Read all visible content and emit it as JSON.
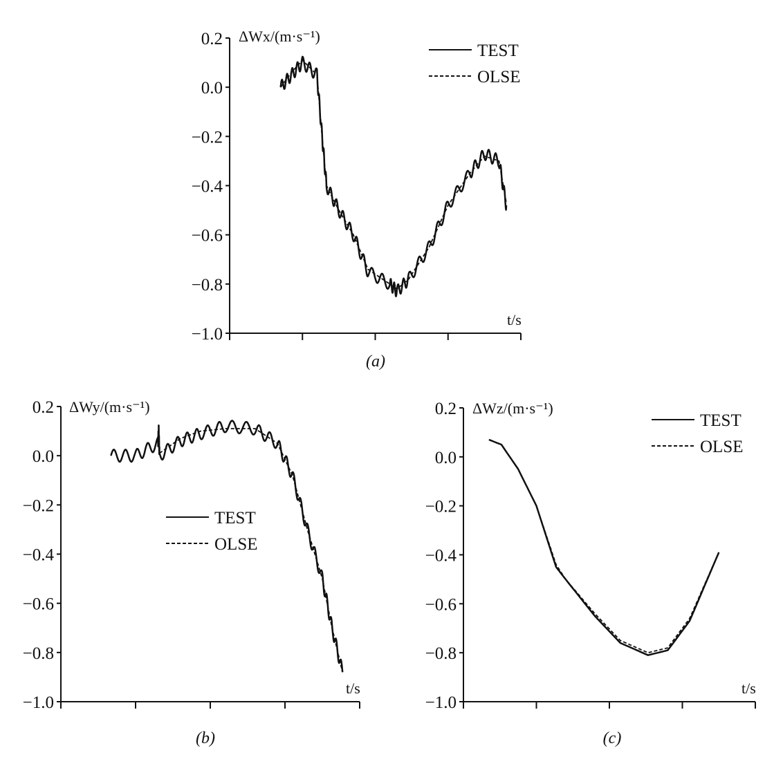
{
  "chart_data": [
    {
      "panel": "a",
      "type": "line",
      "caption": "(a)",
      "ylabel": "ΔWx/(m·s⁻¹)",
      "xlabel": "t/s",
      "ylim": [
        -1.0,
        0.2
      ],
      "yticks": [
        "0.2",
        "0.0",
        "−0.2",
        "−0.4",
        "−0.6",
        "−0.8",
        "−1.0"
      ],
      "xlim": [
        0,
        4
      ],
      "x_tick_labels": [],
      "grid": false,
      "legend": "top-right",
      "series": [
        {
          "name": "TEST",
          "style": "solid",
          "noisy": true,
          "x": [
            0.7,
            0.85,
            1.0,
            1.2,
            1.27,
            1.33,
            1.5,
            1.7,
            1.9,
            2.2,
            2.3,
            2.46,
            2.74,
            3.0,
            3.3,
            3.5,
            3.7,
            3.8
          ],
          "y": [
            0.0,
            0.05,
            0.1,
            0.05,
            -0.2,
            -0.4,
            -0.5,
            -0.6,
            -0.75,
            -0.8,
            -0.83,
            -0.78,
            -0.65,
            -0.48,
            -0.35,
            -0.27,
            -0.3,
            -0.48
          ]
        },
        {
          "name": "OLSE",
          "style": "dashed",
          "noisy": false,
          "x": [
            0.7,
            0.85,
            1.0,
            1.2,
            1.27,
            1.33,
            1.5,
            1.7,
            1.9,
            2.2,
            2.3,
            2.46,
            2.74,
            3.0,
            3.3,
            3.5,
            3.7,
            3.8
          ],
          "y": [
            0.0,
            0.06,
            0.11,
            0.05,
            -0.2,
            -0.4,
            -0.5,
            -0.6,
            -0.74,
            -0.8,
            -0.82,
            -0.78,
            -0.65,
            -0.48,
            -0.35,
            -0.28,
            -0.3,
            -0.47
          ]
        }
      ]
    },
    {
      "panel": "b",
      "type": "line",
      "caption": "(b)",
      "ylabel": "ΔWy/(m·s⁻¹)",
      "xlabel": "t/s",
      "ylim": [
        -1.0,
        0.2
      ],
      "yticks": [
        "0.2",
        "0.0",
        "−0.2",
        "−0.4",
        "−0.6",
        "−0.8",
        "−1.0"
      ],
      "xlim": [
        0,
        4
      ],
      "x_tick_labels": [],
      "grid": false,
      "legend": "center",
      "series": [
        {
          "name": "TEST",
          "style": "solid",
          "noisy": true,
          "x": [
            0.67,
            1.0,
            1.3,
            1.31,
            1.32,
            1.6,
            1.87,
            2.2,
            2.6,
            2.9,
            3.1,
            3.3,
            3.5,
            3.63,
            3.77
          ],
          "y": [
            0.0,
            0.0,
            0.05,
            0.1,
            0.0,
            0.06,
            0.09,
            0.12,
            0.11,
            0.05,
            -0.08,
            -0.3,
            -0.5,
            -0.7,
            -0.88
          ]
        },
        {
          "name": "OLSE",
          "style": "dashed",
          "noisy": false,
          "x": [
            1.32,
            1.6,
            1.87,
            2.2,
            2.6,
            2.9,
            3.1,
            3.3,
            3.5,
            3.63,
            3.77
          ],
          "y": [
            0.01,
            0.07,
            0.1,
            0.11,
            0.11,
            0.05,
            -0.08,
            -0.3,
            -0.5,
            -0.7,
            -0.88
          ]
        }
      ]
    },
    {
      "panel": "c",
      "type": "line",
      "caption": "(c)",
      "ylabel": "ΔWz/(m·s⁻¹)",
      "xlabel": "t/s",
      "ylim": [
        -1.0,
        0.2
      ],
      "yticks": [
        "0.2",
        "0.0",
        "−0.2",
        "−0.4",
        "−0.6",
        "−0.8",
        "−1.0"
      ],
      "xlim": [
        0,
        4
      ],
      "x_tick_labels": [],
      "grid": false,
      "legend": "top-right",
      "series": [
        {
          "name": "TEST",
          "style": "solid",
          "noisy": false,
          "x": [
            0.35,
            0.52,
            0.75,
            1.0,
            1.27,
            1.4,
            1.8,
            2.15,
            2.53,
            2.8,
            3.1,
            3.5
          ],
          "y": [
            0.07,
            0.05,
            -0.05,
            -0.2,
            -0.45,
            -0.5,
            -0.65,
            -0.76,
            -0.81,
            -0.79,
            -0.67,
            -0.39
          ]
        },
        {
          "name": "OLSE",
          "style": "dashed",
          "noisy": false,
          "x": [
            0.35,
            0.52,
            0.75,
            1.0,
            1.27,
            1.4,
            1.8,
            2.15,
            2.53,
            2.8,
            3.1,
            3.5
          ],
          "y": [
            0.07,
            0.05,
            -0.05,
            -0.2,
            -0.44,
            -0.5,
            -0.64,
            -0.75,
            -0.8,
            -0.78,
            -0.66,
            -0.39
          ]
        }
      ]
    }
  ]
}
